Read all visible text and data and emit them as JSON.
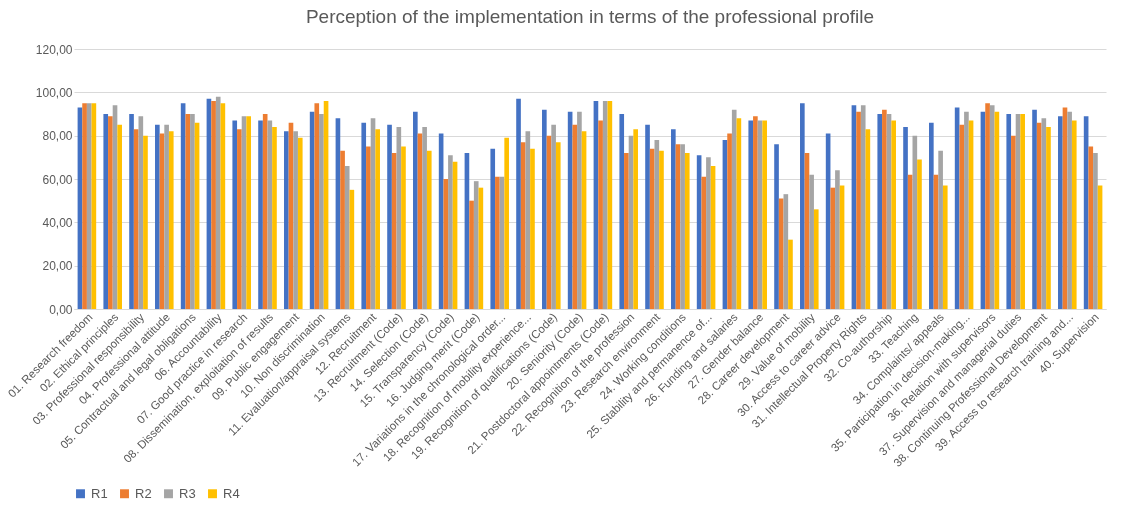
{
  "chart_data": {
    "type": "bar",
    "title": "Perception of the implementation in terms of the professional profile",
    "categories": [
      "01. Research freedom",
      "02. Ethical principles",
      "03. Professional responsibility",
      "04. Professional attitude",
      "05. Contractual and legal obligations",
      "06. Accountability",
      "07. Good practice in research",
      "08. Dissemination, exploitation of results",
      "09. Public engagement",
      "10. Non discrimination",
      "11. Evaluation/appraisal systems",
      "12. Recruitment",
      "13. Recruitment (Code)",
      "14. Selection (Code)",
      "15. Transparency (Code)",
      "16. Judging merit (Code)",
      "17. Variations in the chronological order...",
      "18. Recognition of mobility experience...",
      "19. Recognition of qualifications (Code)",
      "20. Seniority (Code)",
      "21. Postdoctoral appointments (Code)",
      "22. Recognition of the profession",
      "23. Research environment",
      "24. Working conditions",
      "25. Stability and permanence of...",
      "26. Funding and salaries",
      "27. Gender balance",
      "28. Career development",
      "29. Value of mobility",
      "30. Access to career advice",
      "31. Intellectual Property Rights",
      "32. Co-authorship",
      "33. Teaching",
      "34. Complaints/ appeals",
      "35. Participation in decision-making...",
      "36. Relation with supervisors",
      "37. Supervision and managerial duties",
      "38. Continuing Professional Development",
      "39. Access to research training and...",
      "40. Supervision"
    ],
    "series": [
      {
        "name": "R1",
        "color": "#4472c4",
        "values": [
          93,
          90,
          90,
          85,
          95,
          97,
          87,
          87,
          82,
          91,
          88,
          86,
          85,
          91,
          81,
          72,
          74,
          97,
          92,
          91,
          96,
          90,
          85,
          83,
          71,
          78,
          87,
          76,
          95,
          81,
          94,
          90,
          84,
          86,
          93,
          91,
          90,
          92,
          89,
          89
        ]
      },
      {
        "name": "R2",
        "color": "#ed7d31",
        "values": [
          95,
          89,
          83,
          81,
          90,
          96,
          83,
          90,
          86,
          95,
          73,
          75,
          72,
          81,
          60,
          50,
          61,
          77,
          80,
          85,
          87,
          72,
          74,
          76,
          61,
          81,
          89,
          51,
          72,
          56,
          91,
          92,
          62,
          62,
          85,
          95,
          80,
          86,
          93,
          75
        ]
      },
      {
        "name": "R3",
        "color": "#a5a5a5",
        "values": [
          95,
          94,
          89,
          85,
          90,
          98,
          89,
          87,
          82,
          90,
          66,
          88,
          84,
          84,
          71,
          59,
          61,
          82,
          85,
          91,
          96,
          80,
          78,
          76,
          70,
          92,
          87,
          53,
          62,
          64,
          94,
          90,
          80,
          73,
          91,
          94,
          90,
          88,
          91,
          72
        ]
      },
      {
        "name": "R4",
        "color": "#ffc000",
        "values": [
          95,
          85,
          80,
          82,
          86,
          95,
          89,
          84,
          79,
          96,
          55,
          83,
          75,
          73,
          68,
          56,
          79,
          74,
          77,
          82,
          96,
          83,
          73,
          72,
          66,
          88,
          87,
          32,
          46,
          57,
          83,
          87,
          69,
          57,
          87,
          91,
          90,
          84,
          87,
          57
        ]
      }
    ],
    "ylim": [
      0,
      120
    ],
    "yticks": [
      {
        "value": 0,
        "label": "0,00"
      },
      {
        "value": 20,
        "label": "20,00"
      },
      {
        "value": 40,
        "label": "40,00"
      },
      {
        "value": 60,
        "label": "60,00"
      },
      {
        "value": 80,
        "label": "80,00"
      },
      {
        "value": 100,
        "label": "100,00"
      },
      {
        "value": 120,
        "label": "120,00"
      }
    ],
    "grid": "y",
    "legend": "bottom"
  }
}
